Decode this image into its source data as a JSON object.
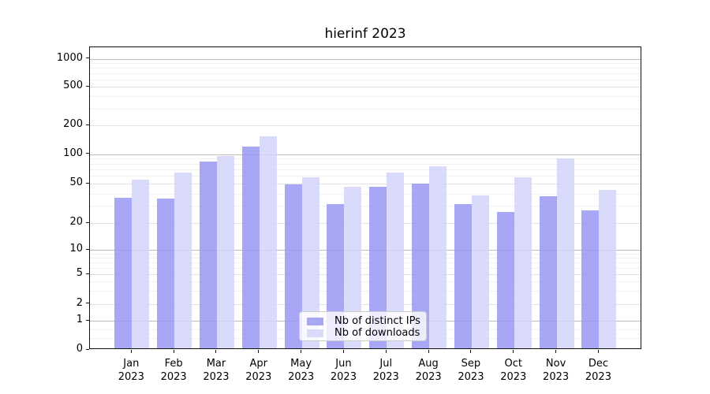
{
  "chart_data": {
    "type": "bar",
    "title": "hierinf 2023",
    "categories": [
      "Jan",
      "Feb",
      "Mar",
      "Apr",
      "May",
      "Jun",
      "Jul",
      "Aug",
      "Sep",
      "Oct",
      "Nov",
      "Dec"
    ],
    "category_year": "2023",
    "series": [
      {
        "name": "Nb of distinct IPs",
        "legend_color": "#a7a7f5",
        "fill": "rgba(152,152,243,0.85)",
        "values": [
          35,
          34,
          82,
          115,
          48,
          30,
          45,
          49,
          30,
          25,
          36,
          26
        ]
      },
      {
        "name": "Nb of downloads",
        "legend_color": "#dadaf9",
        "fill": "rgba(212,212,249,0.85)",
        "values": [
          53,
          63,
          92,
          148,
          56,
          45,
          63,
          73,
          37,
          56,
          88,
          42
        ]
      }
    ],
    "xlabel": "",
    "ylabel": "",
    "yscale": "symlog",
    "ylim": [
      0,
      1260
    ],
    "y_tick_values": [
      0,
      1,
      2,
      5,
      10,
      20,
      50,
      100,
      200,
      500,
      1000
    ],
    "y_tick_labels": [
      "0",
      "1",
      "2",
      "5",
      "10",
      "20",
      "50",
      "100",
      "200",
      "500",
      "1000"
    ],
    "y_minor_ticks": [
      0.4,
      0.7,
      3,
      4,
      6,
      7,
      8,
      9,
      30,
      40,
      60,
      70,
      80,
      90,
      300,
      400,
      600,
      700,
      800,
      900
    ],
    "grid": "both",
    "legend_position": "lower center",
    "bar_group": "two bars per month, distinct-IPs left, downloads right"
  }
}
